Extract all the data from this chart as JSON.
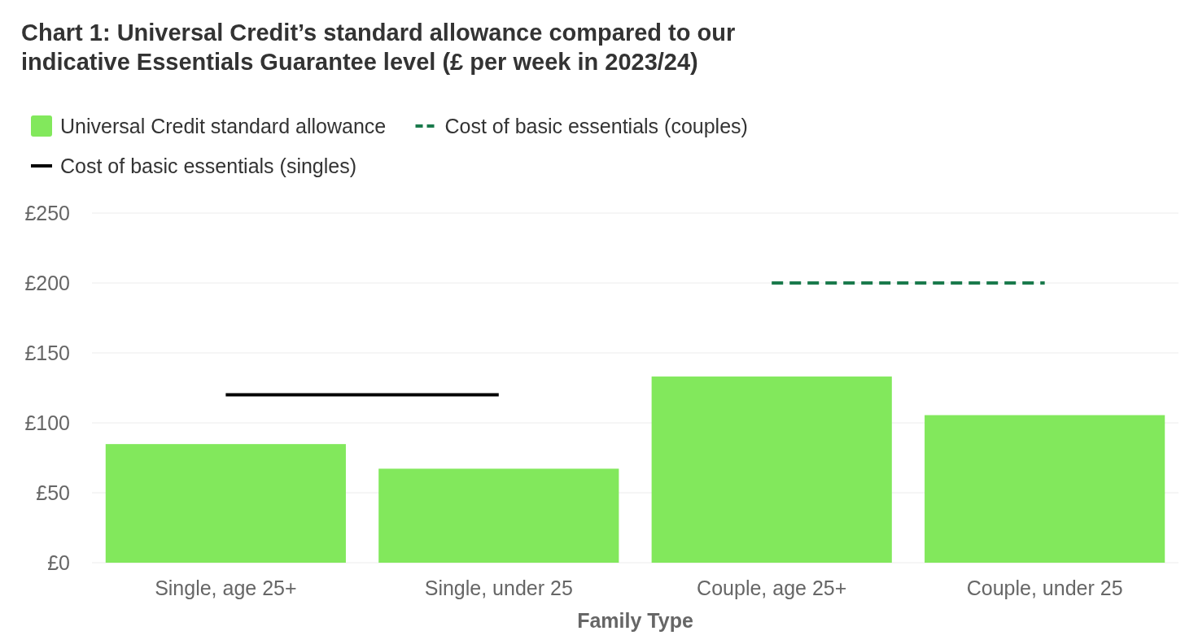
{
  "chart_data": {
    "type": "bar",
    "title": "Chart 1: Universal Credit’s standard allowance compared to our indicative Essentials Guarantee level (£ per week in 2023/24)",
    "xlabel": "Family Type",
    "categories": [
      "Single, age 25+",
      "Single, under 25",
      "Couple, age 25+",
      "Couple, under 25"
    ],
    "series": [
      {
        "name": "Universal Credit standard allowance",
        "color": "#82e85c",
        "values": [
          84.8,
          67.2,
          133.1,
          105.5
        ]
      },
      {
        "name": "Cost of basic essentials (couples)",
        "type": "line",
        "color": "#1a7a4c",
        "line_style": "dashed",
        "values": [
          null,
          null,
          200,
          200
        ]
      },
      {
        "name": "Cost of basic essentials (singles)",
        "type": "line",
        "color": "#000000",
        "line_style": "solid",
        "values": [
          120,
          120,
          null,
          null
        ]
      }
    ],
    "ylim": [
      0,
      250
    ],
    "yticks": [
      {
        "value": 0,
        "label": "£0"
      },
      {
        "value": 50,
        "label": "£50"
      },
      {
        "value": 100,
        "label": "£100"
      },
      {
        "value": 150,
        "label": "£150"
      },
      {
        "value": 200,
        "label": "£200"
      },
      {
        "value": 250,
        "label": "£250"
      }
    ],
    "grid": "y",
    "legend": "top left",
    "marker": "none"
  }
}
